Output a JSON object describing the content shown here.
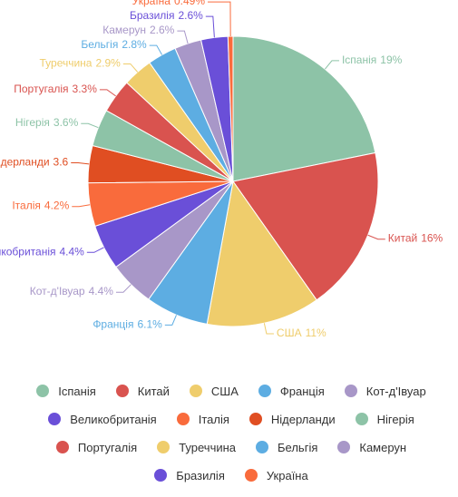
{
  "chart_data": {
    "type": "pie",
    "categories": [
      "Іспанія",
      "Китай",
      "США",
      "Франція",
      "Кот-д'Івуар",
      "Великобританія",
      "Італія",
      "Нідерланди",
      "Нігерія",
      "Португалія",
      "Туреччина",
      "Бельгія",
      "Камерун",
      "Бразилія",
      "Україна"
    ],
    "values": [
      19,
      16,
      11,
      6.1,
      4.4,
      4.4,
      4.2,
      3.6,
      3.6,
      3.3,
      2.9,
      2.8,
      2.6,
      2.6,
      0.49
    ],
    "value_labels": [
      "19%",
      "16%",
      "11%",
      "6.1%",
      "4.4%",
      "4.4%",
      "4.2%",
      "3.6",
      "3.6%",
      "3.3%",
      "2.9%",
      "2.8%",
      "2.6%",
      "2.6%",
      "0.49%"
    ],
    "colors": [
      "#8dc3a7",
      "#d9534f",
      "#efcd6c",
      "#5dade2",
      "#a897c8",
      "#6a4fd8",
      "#f96b3c",
      "#e04e22",
      "#8dc3a7",
      "#d9534f",
      "#efcd6c",
      "#5dade2",
      "#a897c8",
      "#6a4fd8",
      "#f96b3c"
    ],
    "legend": "bottom"
  }
}
